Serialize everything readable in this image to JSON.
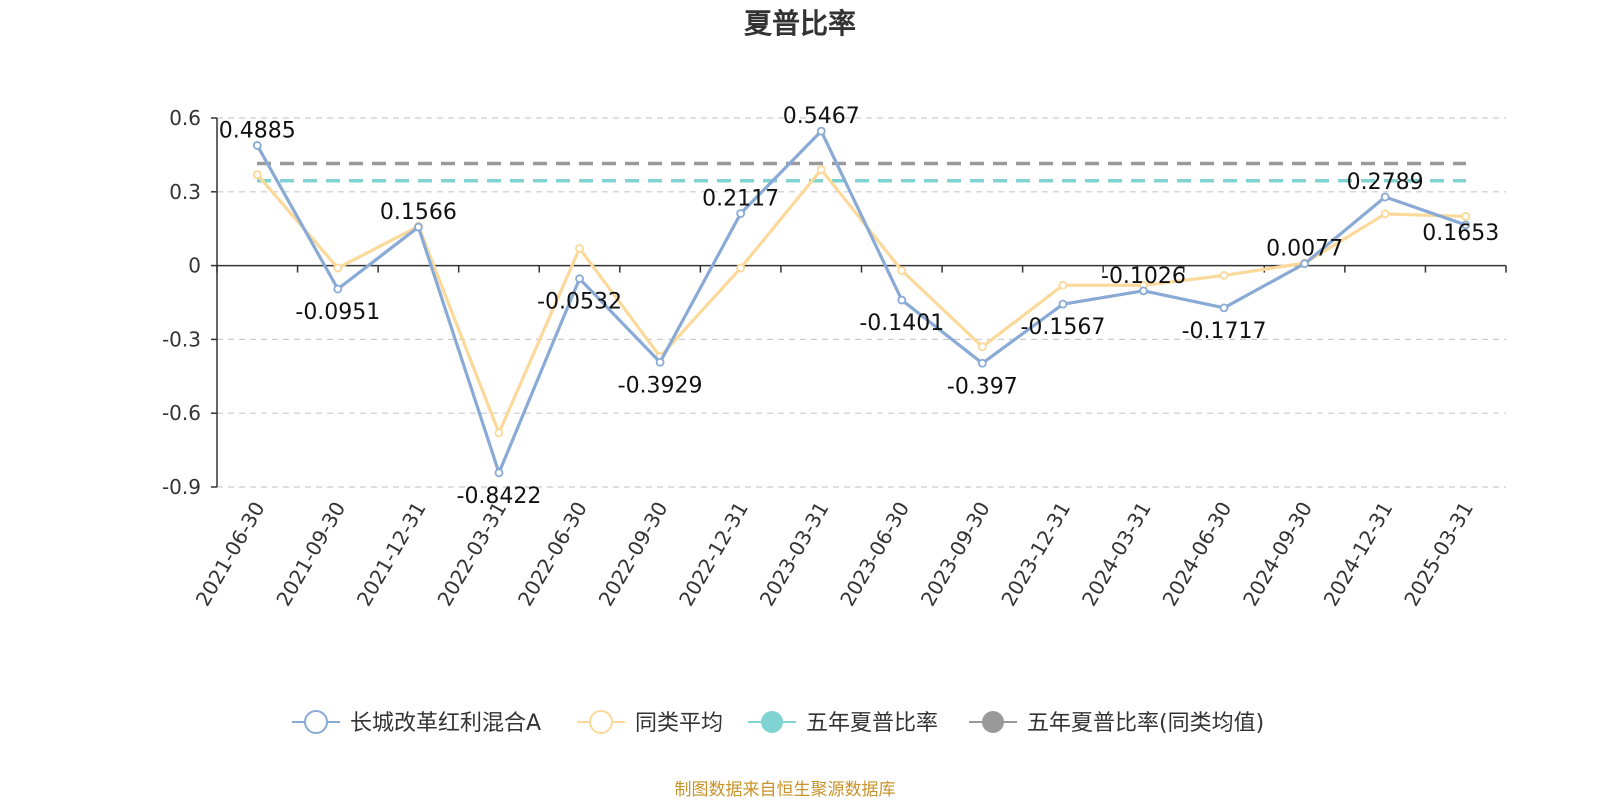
{
  "chart_data": {
    "type": "line",
    "title": "夏普比率",
    "categories": [
      "2021-06-30",
      "2021-09-30",
      "2021-12-31",
      "2022-03-31",
      "2022-06-30",
      "2022-09-30",
      "2022-12-31",
      "2023-03-31",
      "2023-06-30",
      "2023-09-30",
      "2023-12-31",
      "2024-03-31",
      "2024-06-30",
      "2024-09-30",
      "2024-12-31",
      "2025-03-31"
    ],
    "ylim": [
      -0.9,
      0.6
    ],
    "yticks": [
      "0.6",
      "0.3",
      "0",
      "-0.3",
      "-0.6",
      "-0.9"
    ],
    "grid": true,
    "legend_position": "bottom",
    "series": [
      {
        "name": "长城改革红利混合A",
        "color": "#8aaad6",
        "values": [
          0.4885,
          -0.0951,
          0.1566,
          -0.8422,
          -0.0532,
          -0.3929,
          0.2117,
          0.5467,
          -0.1401,
          -0.397,
          -0.1567,
          -0.1026,
          -0.1717,
          0.0077,
          0.2789,
          0.1653
        ],
        "labels": [
          "0.4885",
          "-0.0951",
          "0.1566",
          "-0.8422",
          "-0.0532",
          "-0.3929",
          "0.2117",
          "0.5467",
          "-0.1401",
          "-0.397",
          "-0.1567",
          "-0.1026",
          "-0.1717",
          "0.0077",
          "0.2789",
          "0.1653"
        ]
      },
      {
        "name": "同类平均",
        "color": "#fbd99a",
        "values": [
          0.37,
          -0.01,
          0.16,
          -0.68,
          0.07,
          -0.37,
          -0.01,
          0.39,
          -0.02,
          -0.33,
          -0.08,
          -0.08,
          -0.04,
          0.01,
          0.21,
          0.2
        ]
      },
      {
        "name": "五年夏普比率",
        "color": "#7fd3d3",
        "type": "reference-line",
        "value": 0.345
      },
      {
        "name": "五年夏普比率(同类均值)",
        "color": "#999999",
        "type": "reference-line",
        "value": 0.415
      }
    ]
  },
  "footer": {
    "source": "制图数据来自恒生聚源数据库"
  }
}
